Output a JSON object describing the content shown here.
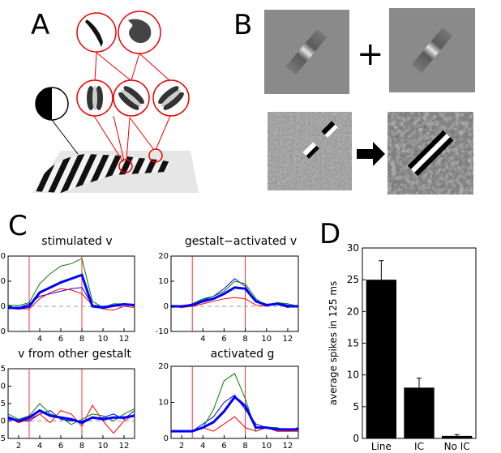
{
  "panels": {
    "a": {
      "letter": "A"
    },
    "b": {
      "letter": "B",
      "plus": "+"
    },
    "c": {
      "letter": "C"
    },
    "d": {
      "letter": "D"
    }
  },
  "chart_data": [
    {
      "type": "line",
      "title": "stimulated v",
      "x": [
        1,
        2,
        3,
        4,
        5,
        6,
        7,
        8,
        9,
        10,
        11,
        12,
        13
      ],
      "xticks": [
        4,
        6,
        8,
        10,
        12
      ],
      "yticks": [
        -10,
        0,
        10,
        20
      ],
      "ylim": [
        -10,
        20
      ],
      "xlim": [
        1,
        13
      ],
      "vlines": [
        3,
        8
      ],
      "series": [
        {
          "color": "#0000ff",
          "width": 3,
          "values": [
            -0.5,
            -0.8,
            0,
            5.5,
            7.5,
            9.5,
            11,
            12.5,
            0,
            -0.5,
            0.2,
            0.8,
            0.5
          ]
        },
        {
          "color": "#008000",
          "width": 1,
          "values": [
            0.5,
            0.3,
            1.5,
            9,
            13,
            16,
            17,
            19,
            2,
            -0.5,
            1,
            1,
            0.5
          ]
        },
        {
          "color": "#ff0000",
          "width": 1,
          "values": [
            -0.5,
            -1,
            -1,
            3,
            5.5,
            7,
            6.5,
            5,
            0.5,
            -1,
            -1.5,
            0,
            -0.5
          ]
        },
        {
          "color": "#0000ff",
          "width": 1,
          "values": [
            -1,
            -0.5,
            1,
            4,
            5,
            6,
            7,
            7.5,
            0.5,
            0,
            0.5,
            1,
            0.2
          ]
        }
      ],
      "dashed_zero": true
    },
    {
      "type": "line",
      "title": "gestalt−activated v",
      "x": [
        1,
        2,
        3,
        4,
        5,
        6,
        7,
        8,
        9,
        10,
        11,
        12,
        13
      ],
      "xticks": [
        4,
        6,
        8,
        10,
        12
      ],
      "yticks": [
        -10,
        0,
        10,
        20
      ],
      "ylim": [
        -10,
        20
      ],
      "xlim": [
        1,
        13
      ],
      "vlines": [
        3,
        8
      ],
      "series": [
        {
          "color": "#0000ff",
          "width": 3,
          "values": [
            0,
            0,
            0.5,
            2,
            3,
            5,
            7.5,
            7,
            2,
            0.5,
            1,
            0,
            0
          ]
        },
        {
          "color": "#008000",
          "width": 1,
          "values": [
            -0.5,
            0,
            1,
            3,
            4,
            6,
            10,
            9,
            3,
            0,
            1.5,
            1,
            0
          ]
        },
        {
          "color": "#ff0000",
          "width": 1,
          "values": [
            0,
            -0.5,
            0,
            1,
            2,
            3,
            3.5,
            3,
            0.5,
            0,
            1,
            -0.5,
            0.5
          ]
        },
        {
          "color": "#0000ff",
          "width": 1,
          "values": [
            0.5,
            -0.5,
            1,
            2.5,
            4,
            7,
            11,
            8,
            2,
            0,
            1.5,
            0.5,
            0
          ]
        }
      ],
      "dashed_zero": true
    },
    {
      "type": "line",
      "title": "v from other gestalt",
      "x": [
        1,
        2,
        3,
        4,
        5,
        6,
        7,
        8,
        9,
        10,
        11,
        12,
        13
      ],
      "xticks": [
        2,
        4,
        6,
        8,
        10,
        12
      ],
      "yticks": [
        -5,
        0,
        5,
        10,
        15
      ],
      "ylim": [
        -5,
        15
      ],
      "xlim": [
        1,
        13
      ],
      "vlines": [
        3,
        8
      ],
      "series": [
        {
          "color": "#0000ff",
          "width": 3,
          "values": [
            1,
            0,
            1,
            3,
            1.5,
            1,
            0.5,
            -0.5,
            1,
            0.5,
            1,
            1,
            1.5
          ]
        },
        {
          "color": "#008000",
          "width": 1,
          "values": [
            2,
            0.5,
            1.5,
            5,
            2,
            1,
            -1,
            0.5,
            2,
            1.5,
            0,
            2,
            3.5
          ]
        },
        {
          "color": "#ff0000",
          "width": 1,
          "values": [
            1,
            -0.5,
            0.5,
            2,
            -0.5,
            3,
            2,
            -1.5,
            4.5,
            0,
            -3.5,
            0,
            2
          ]
        },
        {
          "color": "#0000ff",
          "width": 1,
          "values": [
            0.5,
            0,
            0,
            2,
            3,
            0.5,
            0,
            0,
            1,
            1,
            2,
            0.5,
            3
          ]
        }
      ],
      "dashed_zero": true
    },
    {
      "type": "line",
      "title": "activated g",
      "x": [
        1,
        2,
        3,
        4,
        5,
        6,
        7,
        8,
        9,
        10,
        11,
        12,
        13
      ],
      "xticks": [
        2,
        4,
        6,
        8,
        10,
        12
      ],
      "yticks": [
        0,
        10,
        20
      ],
      "ylim": [
        0,
        20
      ],
      "xlim": [
        1,
        13
      ],
      "vlines": [
        3,
        8
      ],
      "series": [
        {
          "color": "#0000ff",
          "width": 3,
          "values": [
            2,
            2,
            2,
            3,
            4.5,
            7.5,
            11.5,
            9,
            3,
            3,
            2.5,
            2.5,
            2.5
          ]
        },
        {
          "color": "#008000",
          "width": 1,
          "values": [
            2,
            2,
            2,
            3,
            8,
            16,
            18,
            11,
            2,
            3,
            3,
            2,
            2
          ]
        },
        {
          "color": "#ff0000",
          "width": 1,
          "values": [
            2,
            2,
            2,
            3,
            2,
            4,
            6,
            3,
            2,
            3,
            2,
            2,
            2
          ]
        },
        {
          "color": "#0000ff",
          "width": 1,
          "values": [
            2,
            2,
            2,
            4,
            6,
            10,
            12,
            8,
            4,
            3,
            2,
            2,
            3
          ]
        }
      ],
      "dashed_zero": false
    },
    {
      "type": "bar",
      "categories": [
        "Line",
        "IC",
        "No IC"
      ],
      "values": [
        25,
        8,
        0.4
      ],
      "errors": [
        3,
        1.5,
        0.2
      ],
      "ylabel": "average spikes in 125 ms",
      "ylim": [
        0,
        30
      ],
      "yticks": [
        0,
        5,
        10,
        15,
        20,
        25,
        30
      ]
    }
  ]
}
